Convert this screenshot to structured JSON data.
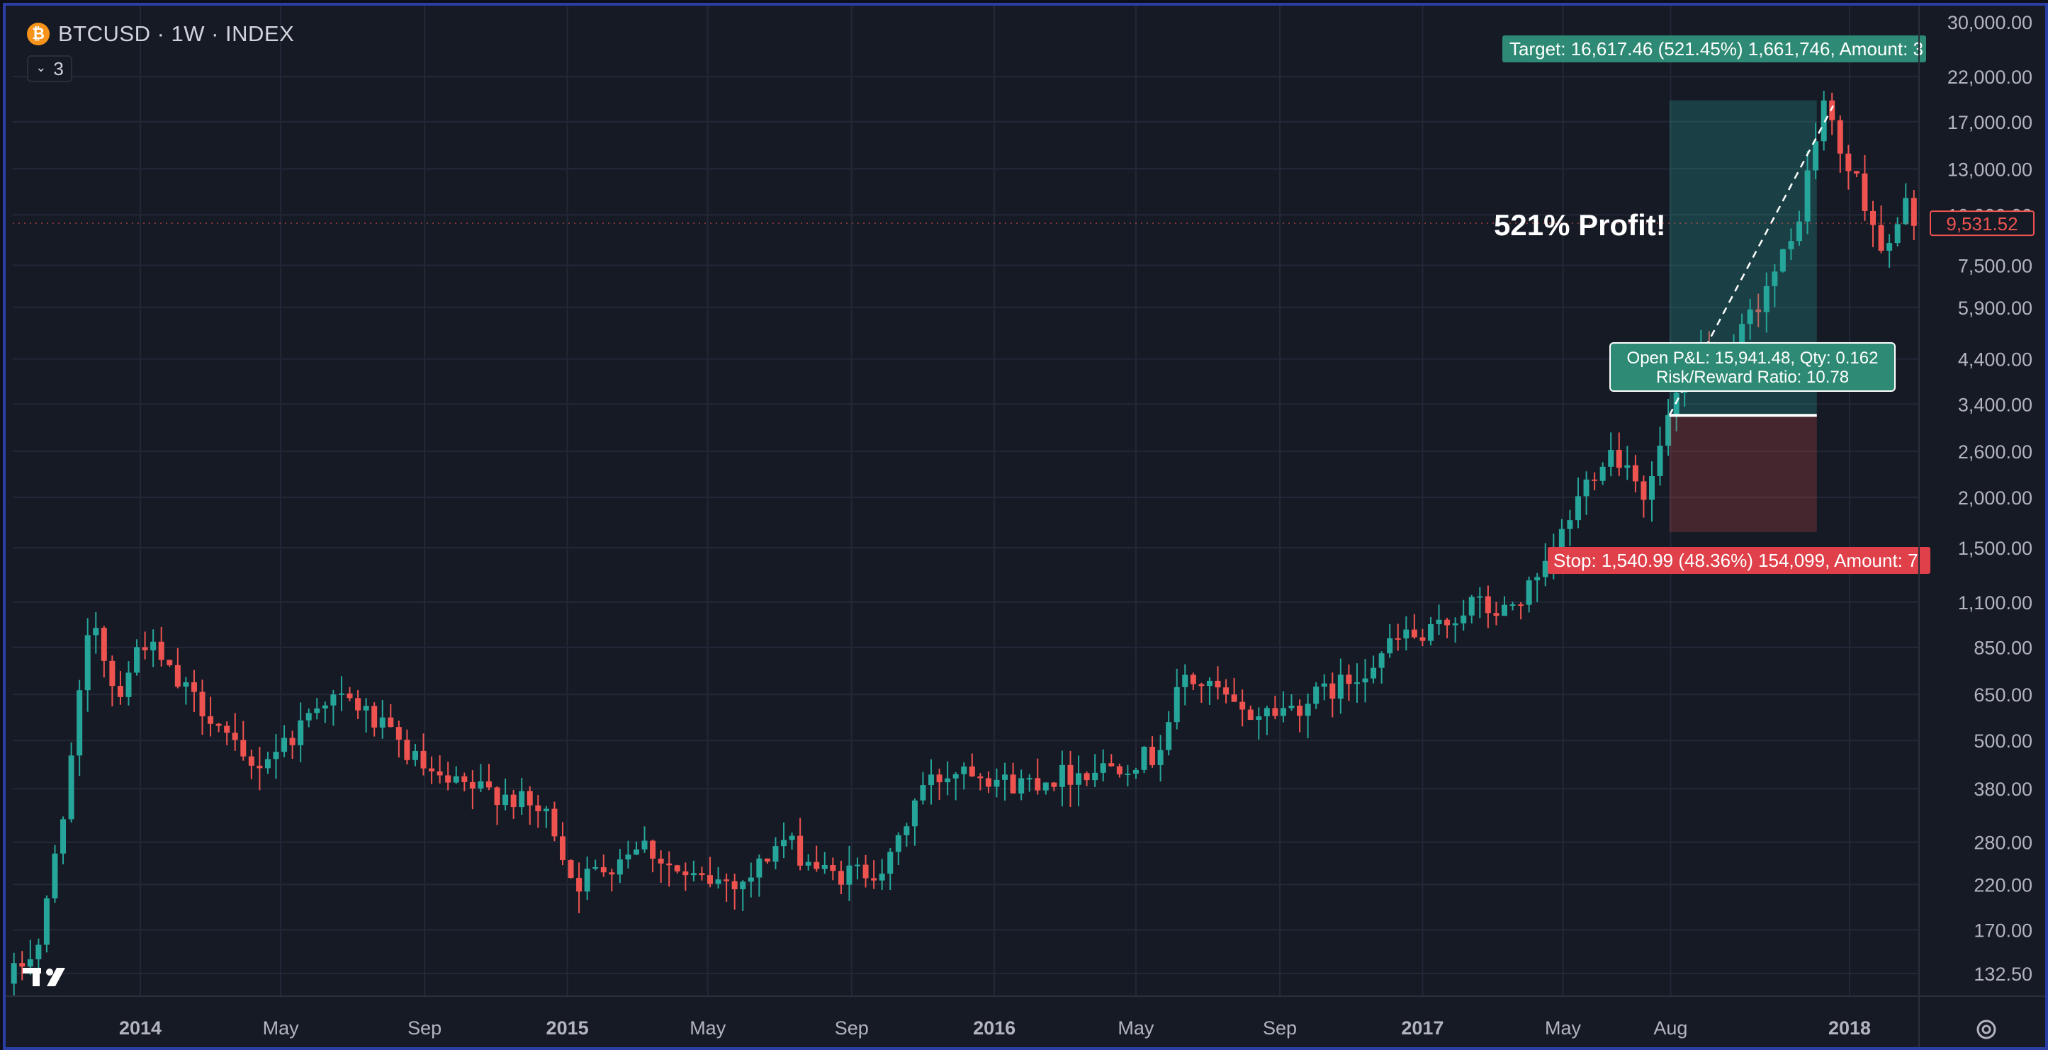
{
  "header": {
    "coin_symbol": "₿",
    "title": "BTCUSD · 1W · INDEX",
    "indicator_count": "3"
  },
  "annotation": {
    "text": "521% Profit!"
  },
  "position": {
    "target_label": "Target: 16,617.46 (521.45%) 1,661,746, Amount: 3",
    "stop_label": "Stop: 1,540.99 (48.36%) 154,099, Amount: 7",
    "info_line1": "Open P&L: 15,941.48, Qty: 0.162",
    "info_line2": "Risk/Reward Ratio: 10.78",
    "target_price": 19200,
    "stop_price": 1640,
    "entry_price": 3190,
    "profit_color": "#26a69a",
    "loss_color": "#ef5350"
  },
  "price_axis": {
    "ticks": [
      "22,000.00",
      "17,000.00",
      "13,000.00",
      "10,000.00",
      "7,500.00",
      "5,900.00",
      "4,400.00",
      "3,400.00",
      "2,600.00",
      "2,000.00",
      "1,500.00",
      "1,100.00",
      "850.00",
      "650.00",
      "500.00",
      "380.00",
      "280.00",
      "220.00",
      "170.00",
      "132.50"
    ],
    "current_price_label": "9,531.52",
    "top_partial_label": "30,000.00"
  },
  "time_axis": {
    "labels": [
      {
        "text": "2014",
        "bold": true
      },
      {
        "text": "May",
        "bold": false
      },
      {
        "text": "Sep",
        "bold": false
      },
      {
        "text": "2015",
        "bold": true
      },
      {
        "text": "May",
        "bold": false
      },
      {
        "text": "Sep",
        "bold": false
      },
      {
        "text": "2016",
        "bold": true
      },
      {
        "text": "May",
        "bold": false
      },
      {
        "text": "Sep",
        "bold": false
      },
      {
        "text": "2017",
        "bold": true
      },
      {
        "text": "May",
        "bold": false
      },
      {
        "text": "Aug",
        "bold": false
      },
      {
        "text": "2018",
        "bold": true
      }
    ]
  },
  "chart_data": {
    "type": "candlestick",
    "title": "BTCUSD · 1W · INDEX",
    "y_scale": "log",
    "ylim": [
      118,
      30000
    ],
    "up_color": "#26a69a",
    "down_color": "#ef5350",
    "grid": true,
    "series": [
      {
        "name": "BTCUSD",
        "anchors": [
          {
            "date": "2013-09-15",
            "price": 125
          },
          {
            "date": "2013-10-15",
            "price": 160
          },
          {
            "date": "2013-11-10",
            "price": 450
          },
          {
            "date": "2013-11-28",
            "price": 1050
          },
          {
            "date": "2013-12-18",
            "price": 640
          },
          {
            "date": "2014-01-10",
            "price": 900
          },
          {
            "date": "2014-02-10",
            "price": 680
          },
          {
            "date": "2014-03-10",
            "price": 580
          },
          {
            "date": "2014-04-10",
            "price": 420
          },
          {
            "date": "2014-05-20",
            "price": 520
          },
          {
            "date": "2014-06-10",
            "price": 640
          },
          {
            "date": "2014-07-10",
            "price": 620
          },
          {
            "date": "2014-08-20",
            "price": 480
          },
          {
            "date": "2014-09-20",
            "price": 390
          },
          {
            "date": "2014-11-15",
            "price": 370
          },
          {
            "date": "2014-12-25",
            "price": 320
          },
          {
            "date": "2015-01-14",
            "price": 220
          },
          {
            "date": "2015-02-20",
            "price": 255
          },
          {
            "date": "2015-03-10",
            "price": 285
          },
          {
            "date": "2015-04-20",
            "price": 225
          },
          {
            "date": "2015-06-10",
            "price": 225
          },
          {
            "date": "2015-07-10",
            "price": 285
          },
          {
            "date": "2015-08-20",
            "price": 230
          },
          {
            "date": "2015-10-10",
            "price": 245
          },
          {
            "date": "2015-11-05",
            "price": 380
          },
          {
            "date": "2015-12-15",
            "price": 440
          },
          {
            "date": "2016-01-20",
            "price": 390
          },
          {
            "date": "2016-03-15",
            "price": 415
          },
          {
            "date": "2016-05-25",
            "price": 460
          },
          {
            "date": "2016-06-18",
            "price": 720
          },
          {
            "date": "2016-07-20",
            "price": 650
          },
          {
            "date": "2016-08-05",
            "price": 575
          },
          {
            "date": "2016-09-20",
            "price": 605
          },
          {
            "date": "2016-11-05",
            "price": 700
          },
          {
            "date": "2016-12-25",
            "price": 920
          },
          {
            "date": "2017-01-08",
            "price": 880
          },
          {
            "date": "2017-02-20",
            "price": 1100
          },
          {
            "date": "2017-03-15",
            "price": 1020
          },
          {
            "date": "2017-04-20",
            "price": 1250
          },
          {
            "date": "2017-05-25",
            "price": 2100
          },
          {
            "date": "2017-06-15",
            "price": 2650
          },
          {
            "date": "2017-07-10",
            "price": 2300
          },
          {
            "date": "2017-07-18",
            "price": 1950
          },
          {
            "date": "2017-08-08",
            "price": 3300
          },
          {
            "date": "2017-09-05",
            "price": 4600
          },
          {
            "date": "2017-09-15",
            "price": 3700
          },
          {
            "date": "2017-10-20",
            "price": 6000
          },
          {
            "date": "2017-11-20",
            "price": 8500
          },
          {
            "date": "2017-12-17",
            "price": 19000
          },
          {
            "date": "2018-01-01",
            "price": 14000
          },
          {
            "date": "2018-01-18",
            "price": 11500
          },
          {
            "date": "2018-02-08",
            "price": 7800
          },
          {
            "date": "2018-02-25",
            "price": 10500
          },
          {
            "date": "2018-03-10",
            "price": 9531.52
          }
        ]
      }
    ]
  }
}
